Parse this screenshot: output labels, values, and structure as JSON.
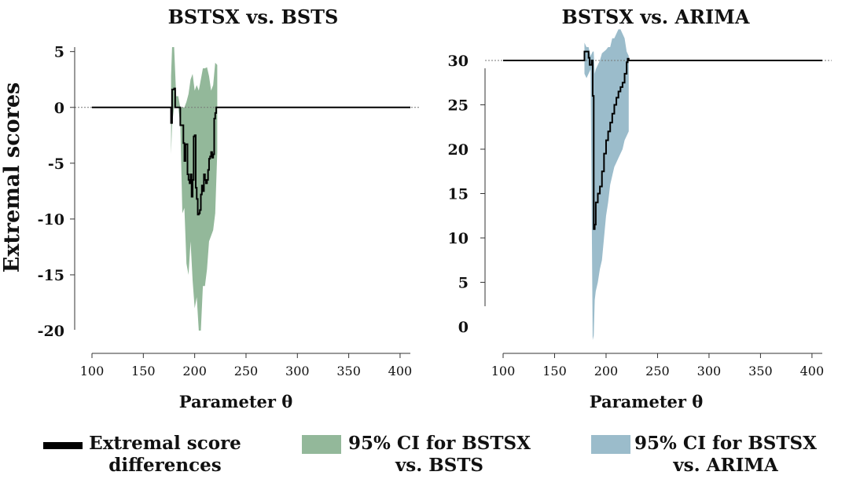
{
  "chart_data": {
    "type": "line",
    "ylabel": "Extremal scores",
    "panels": [
      {
        "title": "BSTSX vs. BSTS",
        "xlabel": "Parameter θ",
        "xlim": [
          100,
          410
        ],
        "xticks": [
          100,
          150,
          200,
          250,
          300,
          350,
          400
        ],
        "ylim": [
          -20.7,
          5.4
        ],
        "yticks": [
          5,
          0,
          -5,
          -10,
          -15,
          -20
        ],
        "ytick_labels": [
          "5",
          "0",
          "-5",
          "-10",
          "-15",
          "-20"
        ],
        "color": "#93b89a",
        "line": {
          "x": [
            100,
            177,
            177,
            178,
            178,
            180,
            180,
            181,
            181,
            186,
            186,
            189,
            189,
            190,
            190,
            191,
            191,
            193,
            193,
            194,
            194,
            195,
            195,
            196,
            196,
            197,
            197,
            198,
            198,
            199,
            199,
            200,
            200,
            201,
            201,
            202,
            202,
            203,
            203,
            204,
            204,
            205,
            205,
            206,
            206,
            207,
            207,
            208,
            208,
            209,
            209,
            210,
            210,
            211,
            211,
            212,
            212,
            213,
            213,
            214,
            214,
            215,
            215,
            216,
            216,
            217,
            217,
            218,
            218,
            219,
            219,
            220,
            220,
            221,
            221,
            222,
            222,
            410
          ],
          "y": [
            0,
            0,
            -1.4,
            -1.4,
            1.6,
            1.6,
            1.7,
            1.7,
            0,
            0,
            -1.6,
            -1.6,
            -3.2,
            -3.2,
            -4.8,
            -4.8,
            -3.3,
            -3.3,
            -6.0,
            -6.0,
            -6.5,
            -6.5,
            -6.8,
            -6.8,
            -6.0,
            -6.0,
            -8.0,
            -8.0,
            -6.5,
            -6.5,
            -2.6,
            -2.6,
            -2.5,
            -2.5,
            -7.2,
            -7.2,
            -8.2,
            -8.2,
            -9.6,
            -9.6,
            -9.5,
            -9.5,
            -9.2,
            -9.2,
            -7.8,
            -7.8,
            -7.0,
            -7.0,
            -7.5,
            -7.5,
            -6.0,
            -6.0,
            -6.5,
            -6.5,
            -6.8,
            -6.8,
            -6.5,
            -6.5,
            -5.6,
            -5.6,
            -4.6,
            -4.6,
            -4.4,
            -4.4,
            -4.0,
            -4.0,
            -4.5,
            -4.5,
            -4.2,
            -4.2,
            -1.0,
            -1.0,
            -0.5,
            -0.5,
            0,
            0,
            0,
            0
          ]
        },
        "ci": {
          "x": [
            177,
            178,
            180,
            182,
            184,
            186,
            188,
            190,
            192,
            194,
            196,
            198,
            200,
            202,
            204,
            206,
            208,
            210,
            212,
            214,
            216,
            218,
            220,
            222
          ],
          "lower": [
            -4.2,
            -1.5,
            0,
            0,
            0,
            -1.5,
            -9.5,
            -9.0,
            -14.0,
            -15.0,
            -12.0,
            -15.5,
            -18.0,
            -17.0,
            -20.0,
            -20.0,
            -16.0,
            -16.0,
            -14.5,
            -12.0,
            -11.5,
            -11.0,
            -9.5,
            -4.0
          ],
          "upper": [
            2.8,
            5.4,
            5.4,
            1.0,
            1.0,
            0.0,
            0.0,
            0.0,
            0.5,
            1.2,
            2.5,
            3.0,
            1.5,
            2.0,
            1.5,
            2.5,
            3.5,
            3.5,
            3.6,
            2.8,
            1.5,
            2.0,
            4.0,
            3.8
          ]
        }
      },
      {
        "title": "BSTSX vs. ARIMA",
        "xlabel": "Parameter θ",
        "xlim": [
          100,
          410
        ],
        "xticks": [
          100,
          150,
          200,
          250,
          300,
          350,
          400
        ],
        "ylim": [
          -1.5,
          31.5
        ],
        "yticks": [
          30,
          25,
          20,
          15,
          10,
          5,
          0
        ],
        "ytick_labels": [
          "30",
          "25",
          "20",
          "15",
          "10",
          "5",
          "0"
        ],
        "color": "#9bbccb",
        "line": {
          "x": [
            100,
            179,
            179,
            183,
            183,
            184,
            184,
            186,
            186,
            187,
            187,
            188,
            188,
            189,
            189,
            190,
            190,
            192,
            192,
            194,
            194,
            196,
            196,
            198,
            198,
            200,
            200,
            202,
            202,
            204,
            204,
            206,
            206,
            208,
            208,
            210,
            210,
            212,
            212,
            214,
            214,
            216,
            216,
            218,
            218,
            220,
            220,
            221,
            221,
            222,
            222,
            410
          ],
          "y": [
            30,
            30,
            31.0,
            31.0,
            30.3,
            30.3,
            29.5,
            29.5,
            30.0,
            30.0,
            26.0,
            26.0,
            11.0,
            11.0,
            11.5,
            11.5,
            14.0,
            14.0,
            15.0,
            15.0,
            15.8,
            15.8,
            17.5,
            17.5,
            19.5,
            19.5,
            21.0,
            21.0,
            22.0,
            22.0,
            23.0,
            23.0,
            24.0,
            24.0,
            25.0,
            25.0,
            25.8,
            25.8,
            26.5,
            26.5,
            27.0,
            27.0,
            27.5,
            27.5,
            28.5,
            28.5,
            29.8,
            29.8,
            30.2,
            30.2,
            30,
            30
          ]
        },
        "ci": {
          "x": [
            179,
            181,
            183,
            185,
            187,
            188,
            189,
            190,
            192,
            194,
            196,
            198,
            200,
            202,
            204,
            206,
            208,
            210,
            212,
            214,
            216,
            218,
            220,
            222
          ],
          "lower": [
            28.5,
            28.0,
            28.5,
            29.0,
            -1.5,
            -1.0,
            3.0,
            4.0,
            5.0,
            6.5,
            7.5,
            10.0,
            12.5,
            14.0,
            16.0,
            17.0,
            18.0,
            18.5,
            19.0,
            19.5,
            20.0,
            21.0,
            21.5,
            22.0
          ],
          "upper": [
            32.0,
            31.5,
            31.5,
            30.5,
            31.0,
            31.0,
            28.5,
            29.0,
            29.5,
            30.0,
            30.8,
            31.0,
            31.2,
            31.5,
            31.5,
            32.5,
            32.5,
            33.0,
            33.5,
            33.5,
            33.0,
            32.5,
            31.0,
            30.5
          ]
        }
      }
    ],
    "legend": [
      {
        "label_lines": [
          "Extremal score",
          "differences"
        ],
        "kind": "line",
        "color": "#000000"
      },
      {
        "label_lines": [
          "95% CI for BSTSX",
          "vs. BSTS"
        ],
        "kind": "patch",
        "color": "#93b89a"
      },
      {
        "label_lines": [
          "95% CI for BSTSX",
          "vs. ARIMA"
        ],
        "kind": "patch",
        "color": "#9bbccb"
      }
    ]
  }
}
